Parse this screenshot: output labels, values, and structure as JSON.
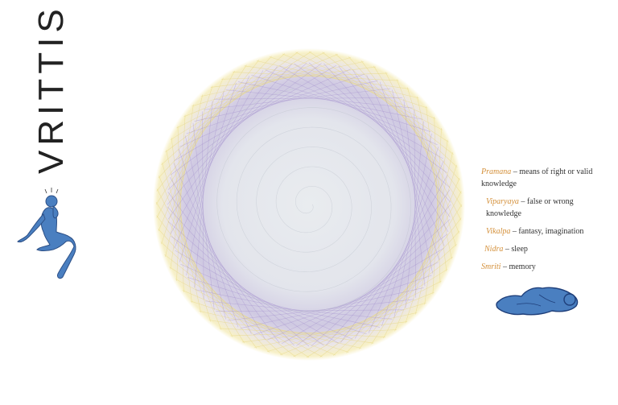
{
  "title": "VRITTIS",
  "legend": [
    {
      "term": "Pramana",
      "desc": " – means of right or valid knowledge"
    },
    {
      "term": "Viparyaya",
      "desc": " – false or wrong knowledge"
    },
    {
      "term": "Vikalpa",
      "desc": " – fantasy, imagination"
    },
    {
      "term": "Nidra",
      "desc": " – sleep"
    },
    {
      "term": "Smriti",
      "desc": " – memory"
    }
  ],
  "colors": {
    "term": "#d4903a",
    "figure": "#4a7fc0",
    "ring_outer": "#e8d98a",
    "ring_inner": "#9c86c9",
    "center": "#e8ebef"
  }
}
